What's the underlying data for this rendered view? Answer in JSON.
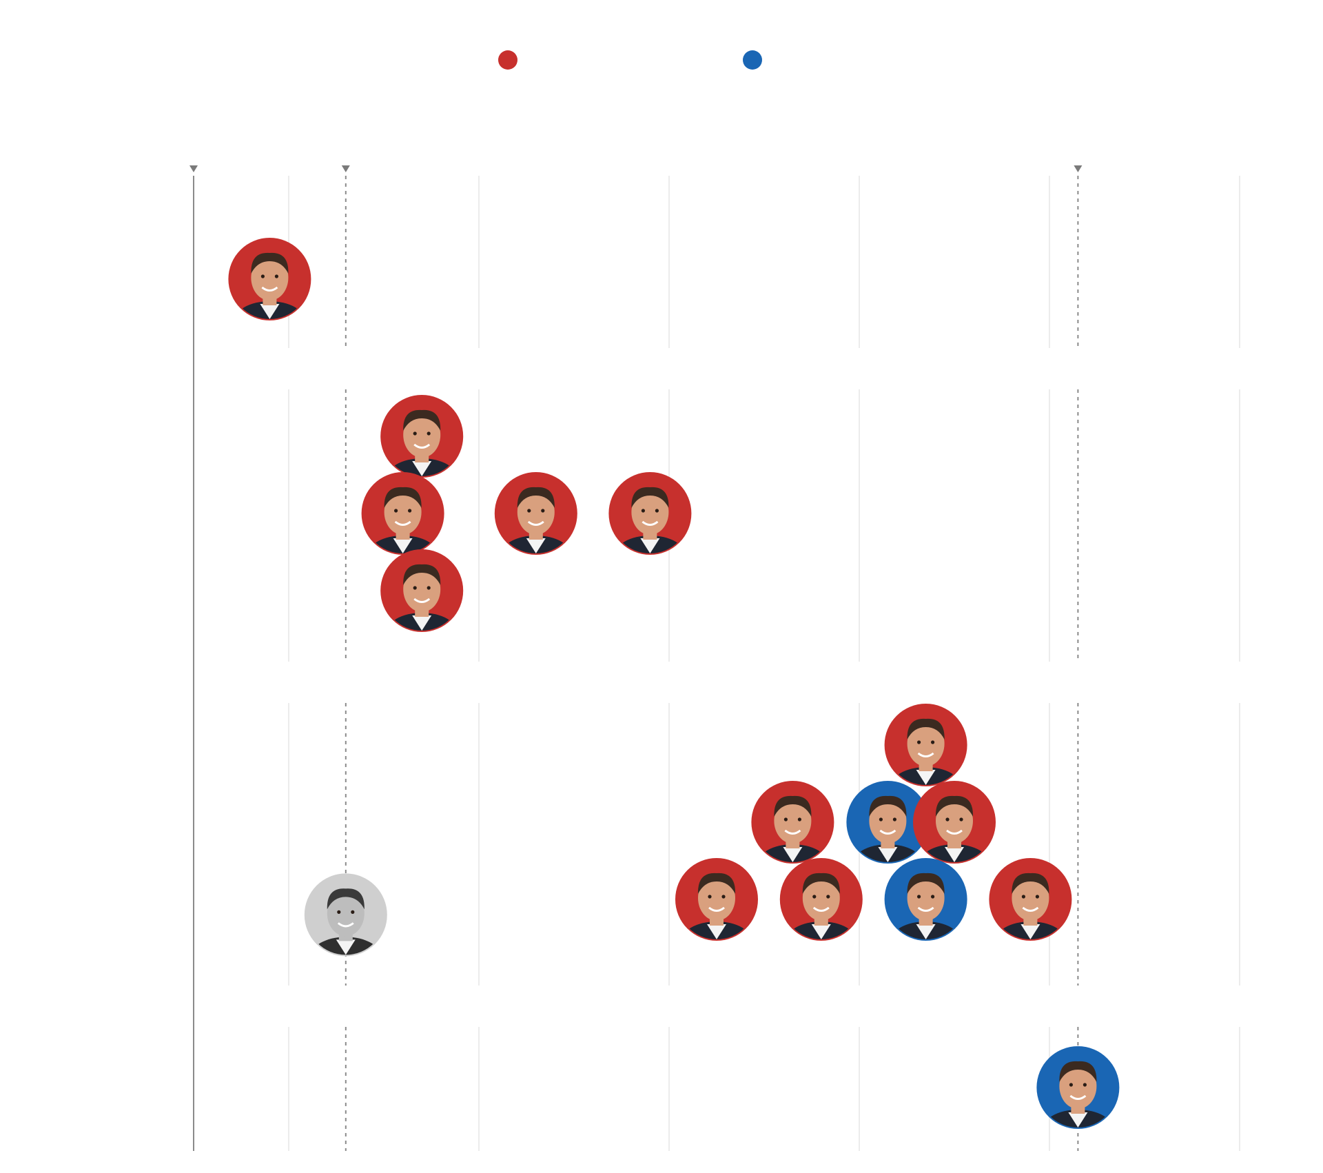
{
  "chart_data": {
    "type": "scatter",
    "title": "",
    "xlabel": "",
    "ylabel": "",
    "grid": true,
    "legend": {
      "placement": "top-center",
      "entries": [
        {
          "name": "",
          "color": "#c7302d"
        },
        {
          "name": "",
          "color": "#1a66b4"
        }
      ]
    },
    "grid_columns": 6,
    "reference_lines": [
      {
        "x": 0.0,
        "style": "solid"
      },
      {
        "x": 0.8,
        "style": "dashed"
      },
      {
        "x": 4.65,
        "style": "dashed"
      }
    ],
    "rows": 4,
    "points": [
      {
        "x": 0.4,
        "row": 0,
        "stack": 0,
        "color": "#c7302d",
        "icon": "portrait-1"
      },
      {
        "x": 1.2,
        "row": 1,
        "stack": 1,
        "color": "#c7302d",
        "icon": "portrait-2"
      },
      {
        "x": 1.1,
        "row": 1,
        "stack": 0,
        "color": "#c7302d",
        "icon": "portrait-3"
      },
      {
        "x": 1.8,
        "row": 1,
        "stack": 0,
        "color": "#c7302d",
        "icon": "portrait-4"
      },
      {
        "x": 2.4,
        "row": 1,
        "stack": 0,
        "color": "#c7302d",
        "icon": "portrait-5"
      },
      {
        "x": 1.2,
        "row": 1,
        "stack": -1,
        "color": "#c7302d",
        "icon": "portrait-6"
      },
      {
        "x": 3.85,
        "row": 2,
        "stack": 2,
        "color": "#c7302d",
        "icon": "portrait-7"
      },
      {
        "x": 3.15,
        "row": 2,
        "stack": 1,
        "color": "#c7302d",
        "icon": "portrait-8"
      },
      {
        "x": 3.65,
        "row": 2,
        "stack": 1,
        "color": "#1a66b4",
        "icon": "portrait-9"
      },
      {
        "x": 4.0,
        "row": 2,
        "stack": 1,
        "color": "#c7302d",
        "icon": "portrait-10"
      },
      {
        "x": 2.75,
        "row": 2,
        "stack": 0,
        "color": "#c7302d",
        "icon": "portrait-11"
      },
      {
        "x": 3.3,
        "row": 2,
        "stack": 0,
        "color": "#c7302d",
        "icon": "portrait-12"
      },
      {
        "x": 3.85,
        "row": 2,
        "stack": 0,
        "color": "#1a66b4",
        "icon": "portrait-13"
      },
      {
        "x": 4.4,
        "row": 2,
        "stack": 0,
        "color": "#c7302d",
        "icon": "portrait-14"
      },
      {
        "x": 0.8,
        "row": 2,
        "stack": -0.2,
        "color": "#cfcfcf",
        "icon": "portrait-15"
      },
      {
        "x": 4.65,
        "row": 3,
        "stack": 0,
        "color": "#1a66b4",
        "icon": "portrait-16"
      }
    ]
  }
}
